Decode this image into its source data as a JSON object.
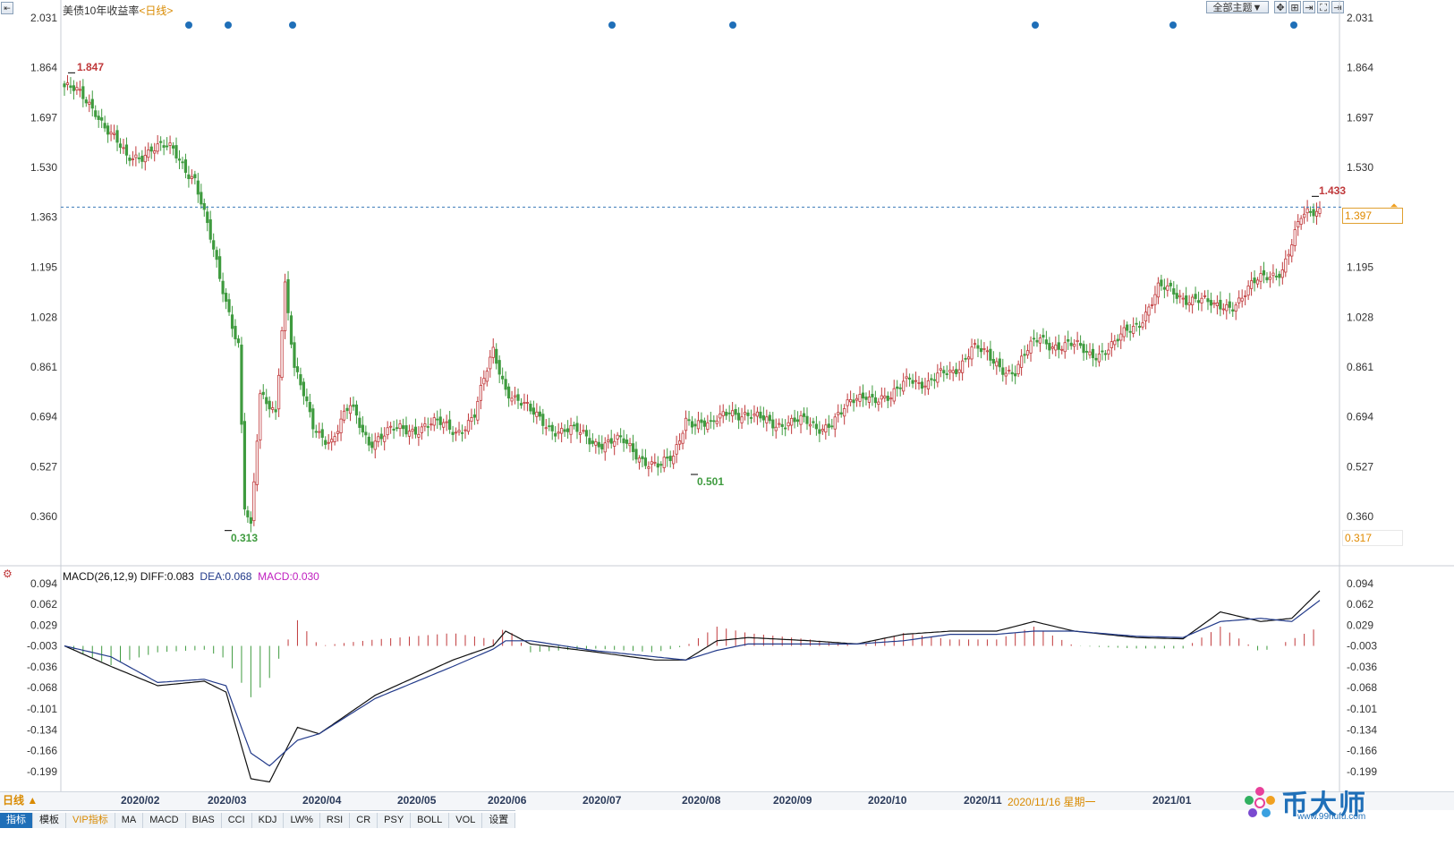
{
  "header": {
    "title": "美债10年收益率",
    "period": "<日线>",
    "theme_button": "全部主题▼"
  },
  "price_price_axis": [
    "2.031",
    "1.864",
    "1.697",
    "1.530",
    "1.363",
    "1.195",
    "1.028",
    "0.861",
    "0.694",
    "0.527",
    "0.360"
  ],
  "annotations": {
    "high": "1.847",
    "low": "0.313",
    "mid_low": "0.501",
    "last_high": "1.433",
    "current": "1.397",
    "bottom_right": "0.317"
  },
  "macd": {
    "label": "MACD(26,12,9)",
    "diff_label": "DIFF:0.083",
    "dea_label": "DEA:0.068",
    "macd_label": "MACD:0.030",
    "axis": [
      "0.094",
      "0.062",
      "0.029",
      "-0.003",
      "-0.036",
      "-0.068",
      "-0.101",
      "-0.134",
      "-0.166",
      "-0.199"
    ]
  },
  "dates": [
    "2020/02",
    "2020/03",
    "2020/04",
    "2020/05",
    "2020/06",
    "2020/07",
    "2020/08",
    "2020/09",
    "2020/10",
    "2020/11",
    "2021/01"
  ],
  "cursor_date": "2020/11/16 星期一",
  "period_button": "日线 ▲",
  "tabs": [
    "指标",
    "模板",
    "VIP指标",
    "MA",
    "MACD",
    "BIAS",
    "CCI",
    "KDJ",
    "LW%",
    "RSI",
    "CR",
    "PSY",
    "BOLL",
    "VOL",
    "设置"
  ],
  "watermark": {
    "name": "币大师",
    "url": "www.99hufu.com"
  },
  "colors": {
    "up": "#c0393b",
    "down": "#3f9b3f",
    "diff": "#111111",
    "dea": "#223a8a",
    "dot": "#1f6fb8",
    "current": "#f0a020"
  },
  "chart_data": {
    "type": "candlestick",
    "title": "美债10年收益率",
    "ylim": [
      0.25,
      2.06
    ],
    "anchor_closes": [
      {
        "x": "2020/01 start",
        "y": 1.8
      },
      {
        "x": "2020/02 start",
        "y": 1.53
      },
      {
        "x": "2020/03 start",
        "y": 1.1
      },
      {
        "x": "2020/03 low",
        "y": 0.313
      },
      {
        "x": "2020/03 bounce",
        "y": 1.18
      },
      {
        "x": "2020/04",
        "y": 0.62
      },
      {
        "x": "2020/05",
        "y": 0.65
      },
      {
        "x": "2020/06 peak",
        "y": 0.91
      },
      {
        "x": "2020/07",
        "y": 0.62
      },
      {
        "x": "2020/08 low",
        "y": 0.501
      },
      {
        "x": "2020/08",
        "y": 0.7
      },
      {
        "x": "2020/09",
        "y": 0.67
      },
      {
        "x": "2020/10",
        "y": 0.78
      },
      {
        "x": "2020/11",
        "y": 0.92
      },
      {
        "x": "2020/12",
        "y": 0.93
      },
      {
        "x": "2021/01",
        "y": 1.1
      },
      {
        "x": "2021/02",
        "y": 1.397
      }
    ],
    "macd_anchors": [
      {
        "x": "2020/01 start",
        "diff": 0.005,
        "dea": 0.0
      },
      {
        "x": "2020/02",
        "diff": -0.055,
        "dea": -0.06
      },
      {
        "x": "2020/03 low",
        "diff": -0.22,
        "dea": -0.19
      },
      {
        "x": "2020/04",
        "diff": -0.14,
        "dea": -0.16
      },
      {
        "x": "2020/06",
        "diff": 0.02,
        "dea": 0.0
      },
      {
        "x": "2020/08",
        "diff": -0.025,
        "dea": -0.02
      },
      {
        "x": "2020/10",
        "diff": 0.0,
        "dea": 0.0
      },
      {
        "x": "2020/11",
        "diff": 0.03,
        "dea": 0.02
      },
      {
        "x": "2021/01",
        "diff": 0.05,
        "dea": 0.045
      },
      {
        "x": "2021/02 end",
        "diff": 0.083,
        "dea": 0.068
      }
    ]
  }
}
